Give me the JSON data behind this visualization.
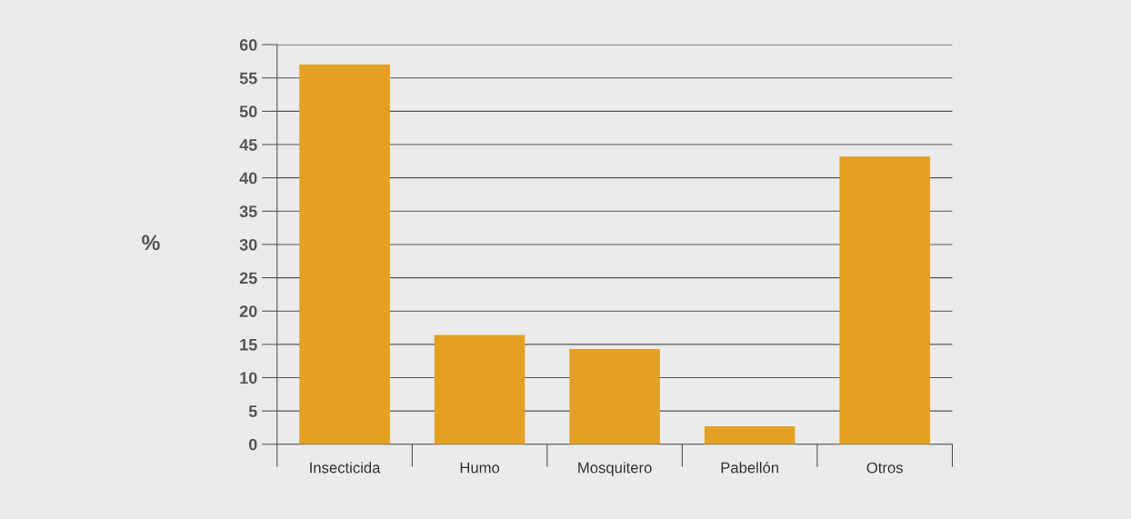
{
  "chart_data": {
    "type": "bar",
    "ylabel": "%",
    "categories": [
      "Insecticida",
      "Humo",
      "Mosquitero",
      "Pabellón",
      "Otros"
    ],
    "values": [
      57.0,
      16.4,
      14.3,
      2.7,
      43.2
    ],
    "color": "#e3a024",
    "ylim": [
      0,
      60
    ],
    "yticks": [
      0,
      5,
      10,
      15,
      20,
      25,
      30,
      35,
      40,
      45,
      50,
      55,
      60
    ],
    "grid": "y",
    "legend": false
  }
}
